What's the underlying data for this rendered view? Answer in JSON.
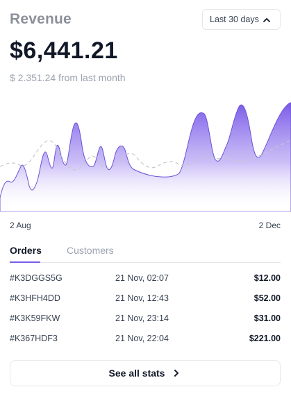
{
  "header": {
    "title": "Revenue",
    "range_label": "Last 30 days"
  },
  "summary": {
    "amount": "$6,441.21",
    "delta": "$ 2.351.24 from last month"
  },
  "chart_data": {
    "type": "area",
    "x_start_label": "2 Aug",
    "x_end_label": "2 Dec",
    "series": [
      {
        "name": "current",
        "style": "filled-area"
      },
      {
        "name": "previous",
        "style": "dashed-line"
      }
    ]
  },
  "tabs": [
    {
      "label": "Orders",
      "active": true
    },
    {
      "label": "Customers",
      "active": false
    }
  ],
  "orders": [
    {
      "id": "#K3DGGS5G",
      "date": "21 Nov, 02:07",
      "amount": "$12.00"
    },
    {
      "id": "#K3HFH4DD",
      "date": "21 Nov, 12:43",
      "amount": "$52.00"
    },
    {
      "id": "#K3K59FKW",
      "date": "21 Nov, 23:14",
      "amount": "$31.00"
    },
    {
      "id": "#K367HDF3",
      "date": "21 Nov, 22:04",
      "amount": "$221.00"
    }
  ],
  "footer": {
    "button_label": "See all stats"
  },
  "colors": {
    "accent": "#7c5ce6",
    "area_top": "#8b6df0",
    "area_bottom": "#ffffff"
  }
}
